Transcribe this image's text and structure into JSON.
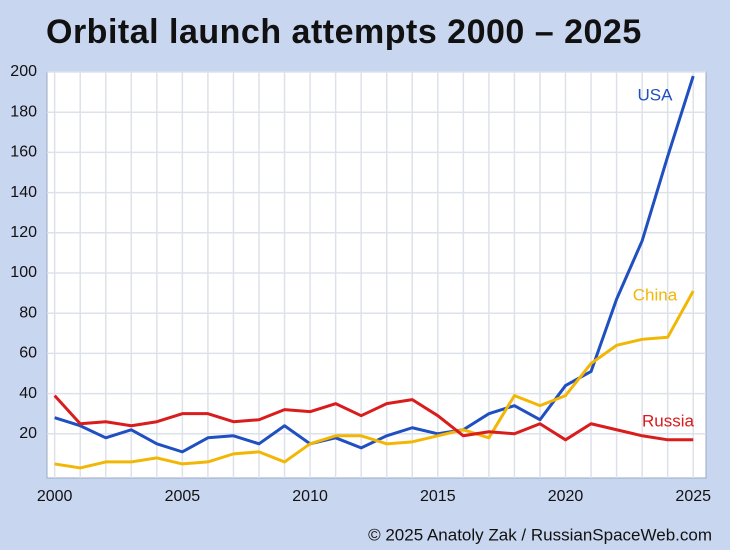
{
  "chart_data": {
    "type": "line",
    "title": "Orbital launch attempts 2000 – 2025",
    "credit": "© 2025 Anatoly Zak / RussianSpaceWeb.com",
    "x": [
      2000,
      2001,
      2002,
      2003,
      2004,
      2005,
      2006,
      2007,
      2008,
      2009,
      2010,
      2011,
      2012,
      2013,
      2014,
      2015,
      2016,
      2017,
      2018,
      2019,
      2020,
      2021,
      2022,
      2023,
      2024,
      2025
    ],
    "series": [
      {
        "name": "USA",
        "color": "#1f4fc0",
        "values": [
          28,
          24,
          18,
          22,
          15,
          11,
          18,
          19,
          15,
          24,
          15,
          18,
          13,
          19,
          23,
          20,
          22,
          30,
          34,
          27,
          44,
          51,
          87,
          116,
          158,
          198
        ]
      },
      {
        "name": "China",
        "color": "#f2b705",
        "values": [
          5,
          3,
          6,
          6,
          8,
          5,
          6,
          10,
          11,
          6,
          15,
          19,
          19,
          15,
          16,
          19,
          22,
          18,
          39,
          34,
          39,
          55,
          64,
          67,
          68,
          91
        ]
      },
      {
        "name": "Russia",
        "color": "#d91c1c",
        "values": [
          39,
          25,
          26,
          24,
          26,
          30,
          30,
          26,
          27,
          32,
          31,
          35,
          29,
          35,
          37,
          29,
          19,
          21,
          20,
          25,
          17,
          25,
          22,
          19,
          17,
          17
        ]
      }
    ],
    "xlim": [
      1999.7,
      2025.5
    ],
    "ylim": [
      -2,
      200
    ],
    "xticks": [
      2000,
      2005,
      2010,
      2015,
      2020,
      2025
    ],
    "yticks": [
      20,
      40,
      60,
      80,
      100,
      120,
      140,
      160,
      180,
      200
    ],
    "grid": true
  }
}
